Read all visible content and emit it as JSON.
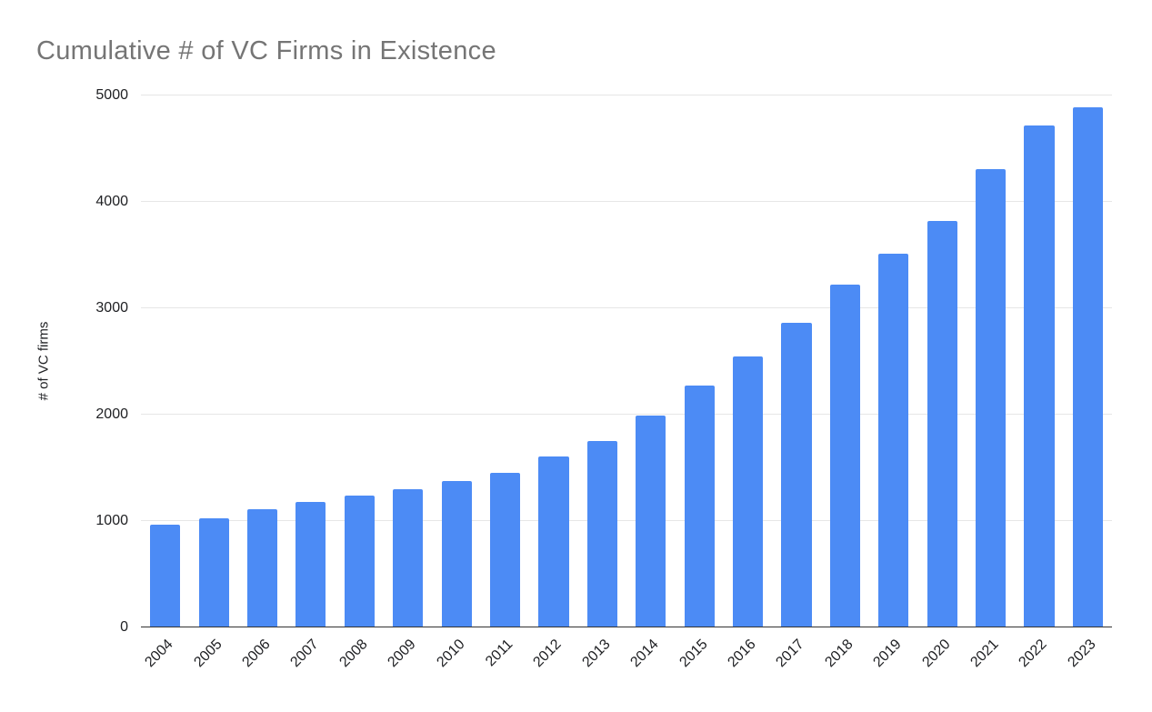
{
  "chart_data": {
    "type": "bar",
    "title": "Cumulative # of VC Firms in Existence",
    "xlabel": "",
    "ylabel": "# of VC firms",
    "categories": [
      "2004",
      "2005",
      "2006",
      "2007",
      "2008",
      "2009",
      "2010",
      "2011",
      "2012",
      "2013",
      "2014",
      "2015",
      "2016",
      "2017",
      "2018",
      "2019",
      "2020",
      "2021",
      "2022",
      "2023"
    ],
    "values": [
      970,
      1030,
      1110,
      1180,
      1240,
      1300,
      1380,
      1450,
      1610,
      1750,
      1990,
      2270,
      2550,
      2860,
      3220,
      3510,
      3820,
      4310,
      4720,
      4890
    ],
    "ylim": [
      0,
      5000
    ],
    "yticks": [
      0,
      1000,
      2000,
      3000,
      4000,
      5000
    ],
    "grid": true,
    "legend_position": "none",
    "series_color": "#4c8bf5"
  },
  "colors": {
    "title_text": "#757575",
    "axis_text": "#202124",
    "gridline": "#e6e6e6",
    "axis_line": "#333333"
  }
}
